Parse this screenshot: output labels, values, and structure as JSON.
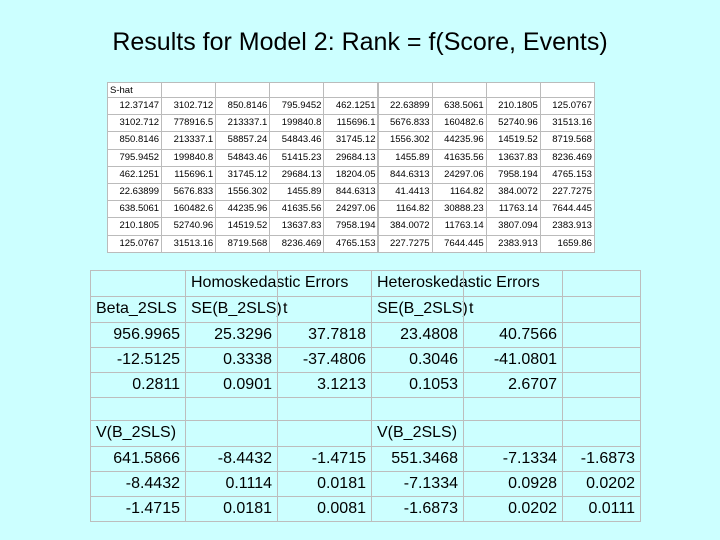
{
  "title": "Results for Model 2: Rank = f(Score, Events)",
  "shat": {
    "label": "S-hat",
    "rows": [
      [
        "12.37147",
        "3102.712",
        "850.8146",
        "795.9452",
        "462.1251",
        "22.63899",
        "638.5061",
        "210.1805",
        "125.0767"
      ],
      [
        "3102.712",
        "778916.5",
        "213337.1",
        "199840.8",
        "115696.1",
        "5676.833",
        "160482.6",
        "52740.96",
        "31513.16"
      ],
      [
        "850.8146",
        "213337.1",
        "58857.24",
        "54843.46",
        "31745.12",
        "1556.302",
        "44235.96",
        "14519.52",
        "8719.568"
      ],
      [
        "795.9452",
        "199840.8",
        "54843.46",
        "51415.23",
        "29684.13",
        "1455.89",
        "41635.56",
        "13637.83",
        "8236.469"
      ],
      [
        "462.1251",
        "115696.1",
        "31745.12",
        "29684.13",
        "18204.05",
        "844.6313",
        "24297.06",
        "7958.194",
        "4765.153"
      ],
      [
        "22.63899",
        "5676.833",
        "1556.302",
        "1455.89",
        "844.6313",
        "41.4413",
        "1164.82",
        "384.0072",
        "227.7275"
      ],
      [
        "638.5061",
        "160482.6",
        "44235.96",
        "41635.56",
        "24297.06",
        "1164.82",
        "30888.23",
        "11763.14",
        "7644.445"
      ],
      [
        "210.1805",
        "52740.96",
        "14519.52",
        "13637.83",
        "7958.194",
        "384.0072",
        "11763.14",
        "3807.094",
        "2383.913"
      ],
      [
        "125.0767",
        "31513.16",
        "8719.568",
        "8236.469",
        "4765.153",
        "227.7275",
        "7644.445",
        "2383.913",
        "1659.86"
      ]
    ]
  },
  "results": {
    "group_headers": [
      "Homoskedastic Errors",
      "Heteroskedastic Errors"
    ],
    "col_headers": [
      "Beta_2SLS",
      "SE(B_2SLS)",
      "t",
      "SE(B_2SLS)",
      "t"
    ],
    "beta_rows": [
      [
        "956.9965",
        "25.3296",
        "37.7818",
        "23.4808",
        "40.7566"
      ],
      [
        "-12.5125",
        "0.3338",
        "-37.4806",
        "0.3046",
        "-41.0801"
      ],
      [
        "0.2811",
        "0.0901",
        "3.1213",
        "0.1053",
        "2.6707"
      ]
    ],
    "vcov_headers": [
      "V(B_2SLS)",
      "V(B_2SLS)"
    ],
    "vcov_rows": [
      [
        "641.5866",
        "-8.4432",
        "-1.4715",
        "551.3468",
        "-7.1334",
        "-1.6873"
      ],
      [
        "-8.4432",
        "0.1114",
        "0.0181",
        "-7.1334",
        "0.0928",
        "0.0202"
      ],
      [
        "-1.4715",
        "0.0181",
        "0.0081",
        "-1.6873",
        "0.0202",
        "0.0111"
      ]
    ]
  }
}
